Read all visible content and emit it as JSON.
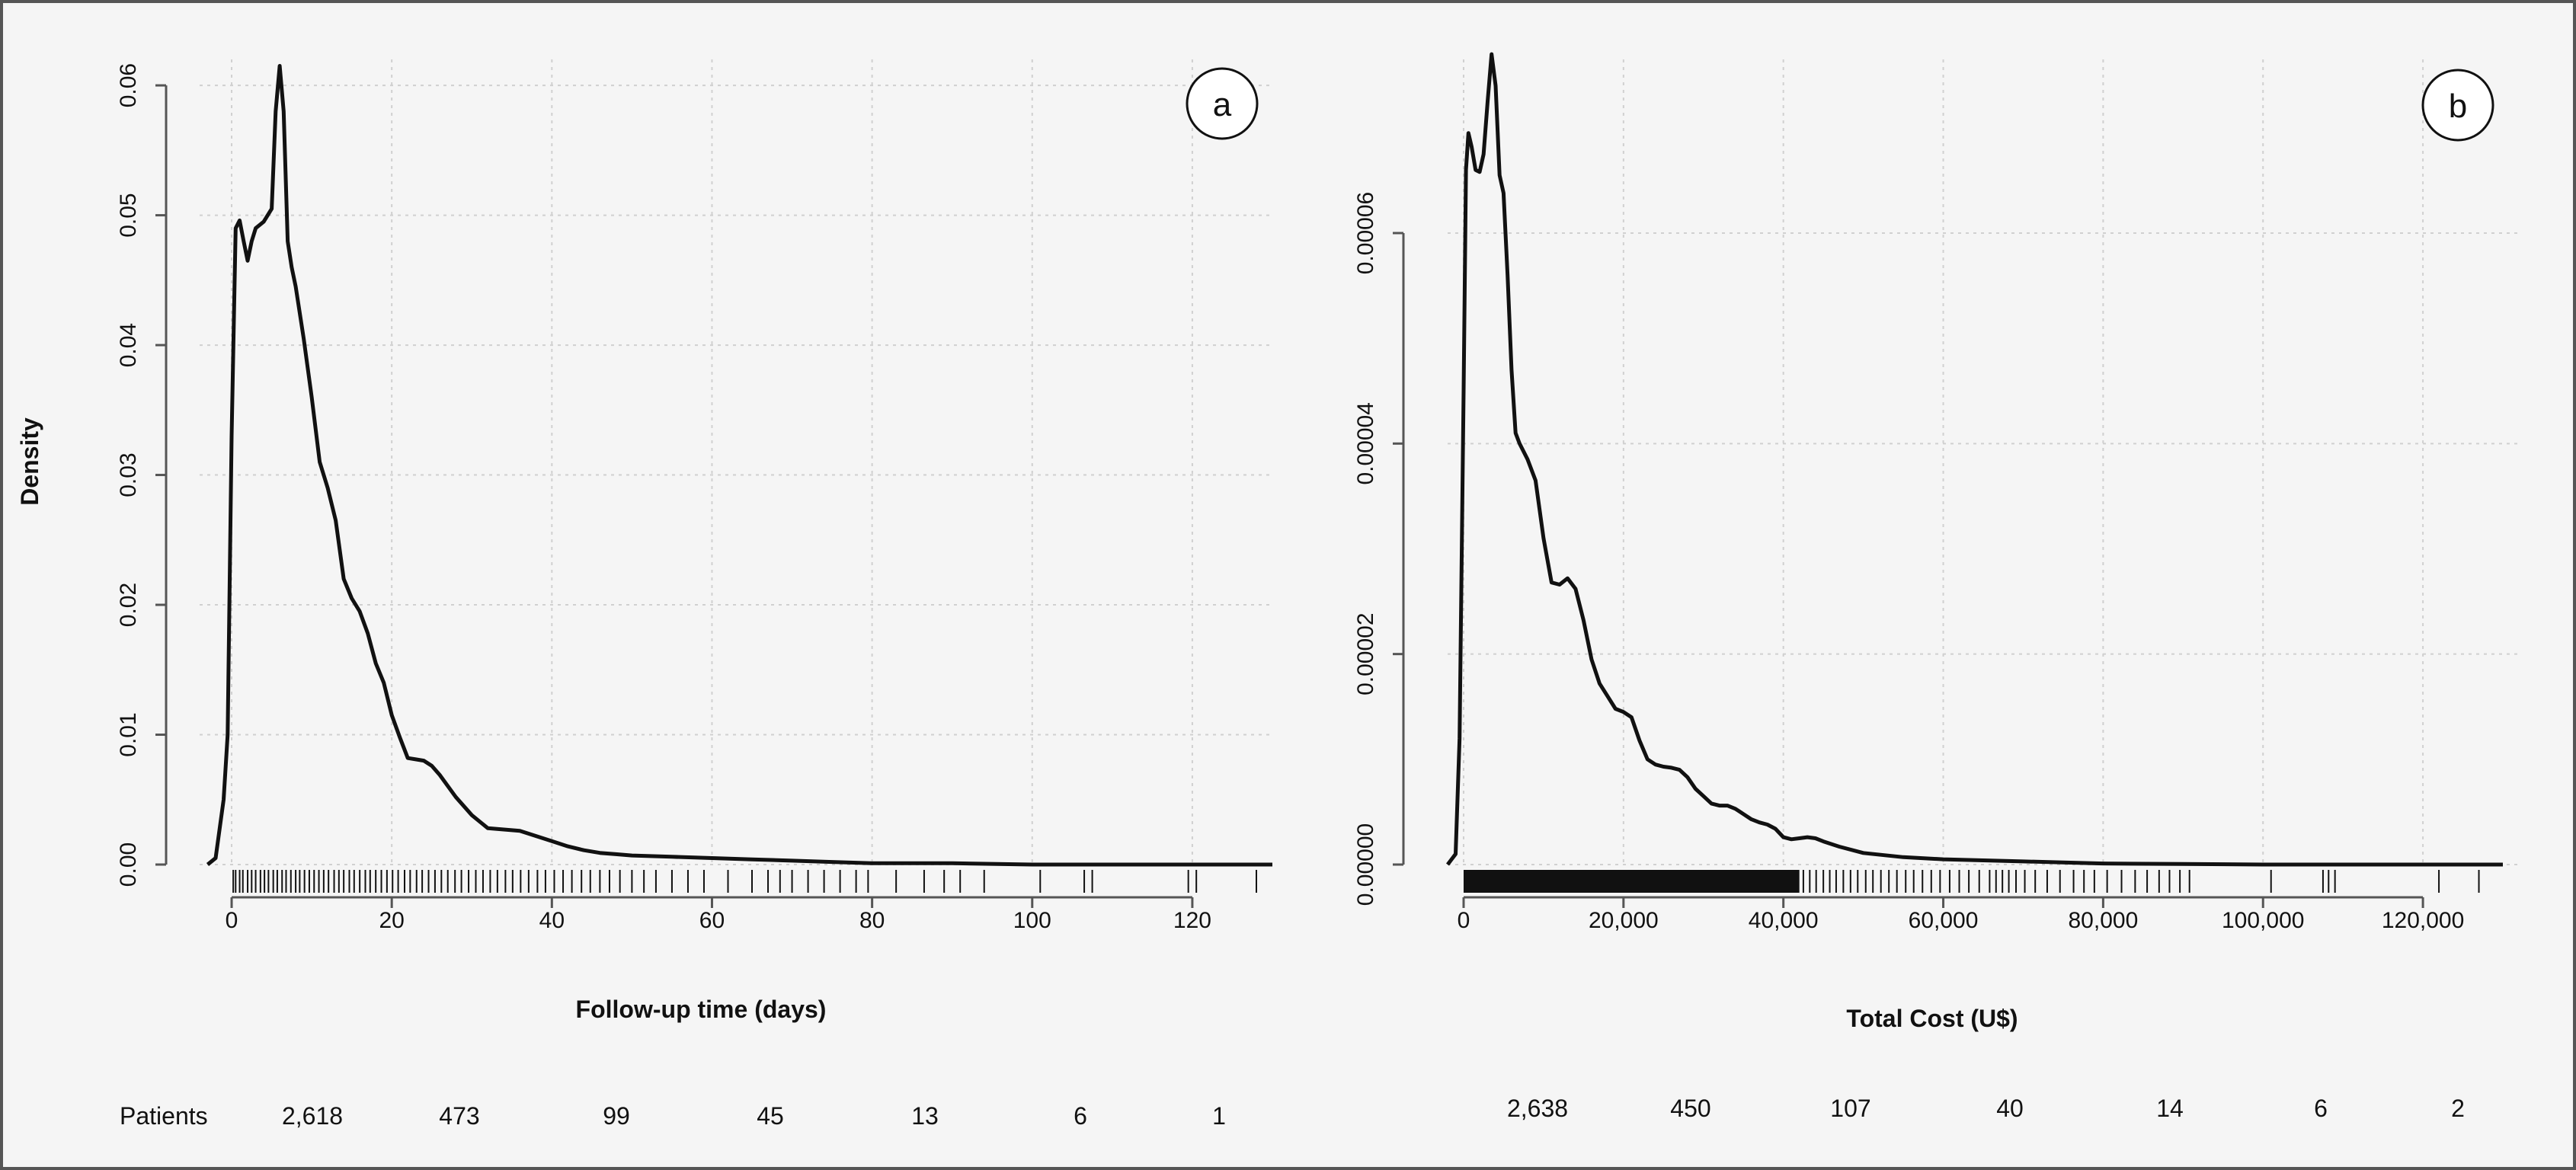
{
  "chart_data": [
    {
      "panel": "a",
      "type": "line",
      "title": "",
      "xlabel": "Follow-up time (days)",
      "ylabel": "Density",
      "xlim": [
        -4,
        130
      ],
      "ylim": [
        0,
        0.062
      ],
      "x_ticks": [
        0,
        20,
        40,
        60,
        80,
        100,
        120
      ],
      "x_tick_labels": [
        "0",
        "20",
        "40",
        "60",
        "80",
        "100",
        "120"
      ],
      "y_ticks": [
        0,
        0.01,
        0.02,
        0.03,
        0.04,
        0.05,
        0.06
      ],
      "y_tick_labels": [
        "0.00",
        "0.01",
        "0.02",
        "0.03",
        "0.04",
        "0.05",
        "0.06"
      ],
      "grid": true,
      "series": [
        {
          "x": [
            -3,
            -2,
            -1,
            -0.5,
            0,
            0.5,
            1,
            1.5,
            2,
            2.5,
            3,
            4,
            5,
            5.5,
            6,
            6.5,
            7,
            7.5,
            8,
            9,
            10,
            11,
            12,
            13,
            14,
            15,
            16,
            17,
            18,
            19,
            20,
            21,
            22,
            23,
            24,
            25,
            26,
            28,
            30,
            32,
            34,
            36,
            38,
            40,
            42,
            44,
            46,
            48,
            50,
            55,
            60,
            65,
            70,
            75,
            80,
            90,
            100,
            110,
            120,
            130
          ],
          "y": [
            0,
            0.0005,
            0.005,
            0.01,
            0.033,
            0.049,
            0.0496,
            0.048,
            0.0465,
            0.048,
            0.049,
            0.0495,
            0.0505,
            0.058,
            0.0615,
            0.058,
            0.048,
            0.046,
            0.0445,
            0.0405,
            0.036,
            0.031,
            0.029,
            0.0265,
            0.022,
            0.0205,
            0.0195,
            0.0178,
            0.0155,
            0.014,
            0.0115,
            0.0098,
            0.0082,
            0.0081,
            0.008,
            0.0076,
            0.0069,
            0.0052,
            0.0038,
            0.0028,
            0.0027,
            0.0026,
            0.0022,
            0.0018,
            0.0014,
            0.0011,
            0.0009,
            0.0008,
            0.0007,
            0.0006,
            0.0005,
            0.0004,
            0.0003,
            0.0002,
            0.0001,
            0.0001,
            0,
            0,
            0,
            0
          ]
        }
      ],
      "rug": [
        0.2,
        0.5,
        1,
        1.4,
        2,
        2.5,
        3,
        3.6,
        4.1,
        4.6,
        5.2,
        5.7,
        6.3,
        6.8,
        7.4,
        8,
        8.5,
        9.1,
        9.7,
        10.3,
        10.9,
        11.5,
        12.1,
        12.8,
        13.4,
        14,
        14.7,
        15.3,
        16,
        16.7,
        17.3,
        18,
        18.7,
        19.4,
        20.1,
        20.8,
        21.6,
        22.3,
        23.1,
        23.8,
        24.6,
        25.4,
        26.2,
        27,
        27.9,
        28.7,
        29.6,
        30.5,
        31.4,
        32.3,
        33.2,
        34.2,
        35.1,
        36.1,
        37.1,
        38.2,
        39.2,
        40.3,
        41.4,
        42.5,
        43.7,
        44.8,
        46,
        47.2,
        48.5,
        50,
        51.5,
        53,
        55,
        57,
        59,
        62,
        65,
        67,
        68.5,
        70,
        72,
        74,
        76,
        78,
        79.5,
        83,
        86.5,
        89,
        91,
        94,
        101,
        106.5,
        107.5,
        119.5,
        120.5,
        128
      ],
      "group_label": "Patients",
      "group_counts": [
        "2,618",
        "473",
        "99",
        "45",
        "13",
        "6",
        "1"
      ]
    },
    {
      "panel": "b",
      "type": "line",
      "title": "",
      "xlabel": "Total Cost (U$)",
      "ylabel": "",
      "xlim": [
        -2000,
        132000
      ],
      "ylim": [
        0,
        7.65e-05
      ],
      "x_ticks": [
        0,
        20000,
        40000,
        60000,
        80000,
        100000,
        120000
      ],
      "x_tick_labels": [
        "0",
        "20,000",
        "40,000",
        "60,000",
        "80,000",
        "100,000",
        "120,000"
      ],
      "y_ticks": [
        0,
        2e-05,
        4e-05,
        6e-05
      ],
      "y_tick_labels": [
        "0.00000",
        "0.00002",
        "0.00004",
        "0.00006"
      ],
      "grid": true,
      "series": [
        {
          "x": [
            -2000,
            -1000,
            -500,
            0,
            300,
            600,
            1000,
            1500,
            2000,
            2500,
            3000,
            3500,
            4000,
            4500,
            5000,
            5500,
            6000,
            6500,
            7000,
            8000,
            9000,
            10000,
            11000,
            12000,
            13000,
            14000,
            15000,
            16000,
            17000,
            18000,
            19000,
            20000,
            21000,
            22000,
            23000,
            24000,
            25000,
            26000,
            27000,
            28000,
            29000,
            30000,
            31000,
            32000,
            33000,
            34000,
            35000,
            36000,
            37000,
            38000,
            39000,
            40000,
            41000,
            42000,
            43000,
            44000,
            45000,
            47000,
            50000,
            55000,
            60000,
            65000,
            70000,
            75000,
            80000,
            90000,
            100000,
            110000,
            120000,
            130000
          ],
          "y": [
            0,
            1e-06,
            1.2e-05,
            4.5e-05,
            6.6e-05,
            6.95e-05,
            6.82e-05,
            6.6e-05,
            6.58e-05,
            6.75e-05,
            7.25e-05,
            7.7e-05,
            7.4e-05,
            6.55e-05,
            6.38e-05,
            5.6e-05,
            4.7e-05,
            4.1e-05,
            4e-05,
            3.85e-05,
            3.65e-05,
            3.1e-05,
            2.68e-05,
            2.66e-05,
            2.72e-05,
            2.62e-05,
            2.32e-05,
            1.95e-05,
            1.72e-05,
            1.6e-05,
            1.48e-05,
            1.45e-05,
            1.4e-05,
            1.18e-05,
            1e-05,
            9.5e-06,
            9.3e-06,
            9.2e-06,
            9e-06,
            8.3e-06,
            7.2e-06,
            6.5e-06,
            5.8e-06,
            5.6e-06,
            5.6e-06,
            5.3e-06,
            4.8e-06,
            4.3e-06,
            4e-06,
            3.8e-06,
            3.4e-06,
            2.6e-06,
            2.4e-06,
            2.5e-06,
            2.6e-06,
            2.5e-06,
            2.2e-06,
            1.7e-06,
            1.1e-06,
            7e-07,
            5e-07,
            4e-07,
            3e-07,
            2e-07,
            1e-07,
            5e-08,
            0,
            0,
            0,
            0
          ]
        }
      ],
      "rug_dense_until": 42000,
      "rug": [
        42500,
        43300,
        44100,
        45000,
        45800,
        46600,
        47500,
        48400,
        49300,
        50300,
        51200,
        52200,
        53200,
        54200,
        55300,
        56300,
        57400,
        58500,
        59600,
        60800,
        62000,
        63200,
        64500,
        65800,
        66600,
        67400,
        68200,
        69100,
        70200,
        71500,
        73000,
        74600,
        76300,
        77600,
        78900,
        80500,
        82300,
        84000,
        85500,
        87000,
        88300,
        89600,
        90800,
        101000,
        107500,
        108200,
        109000,
        122000,
        127000
      ],
      "group_label": "",
      "group_counts": [
        "2,638",
        "450",
        "107",
        "40",
        "14",
        "6",
        "2"
      ]
    }
  ],
  "panels": [
    {
      "badge": "a"
    },
    {
      "badge": "b"
    }
  ],
  "colors": {
    "frame": "#555555",
    "plot_bg": "#f5f5f5",
    "grid": "#d0d0d0",
    "curve": "#111111",
    "axis": "#555555"
  }
}
